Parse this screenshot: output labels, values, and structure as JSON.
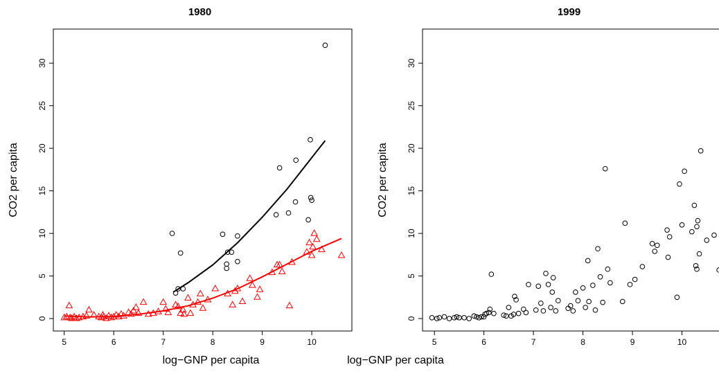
{
  "chart_data": [
    {
      "type": "scatter",
      "title": "1980",
      "x_label": "log−GNP per capita",
      "y_label": "CO2 per capita",
      "xlim": [
        4.78,
        10.81
      ],
      "ylim": [
        -1.46,
        34
      ],
      "xticks": [
        5,
        6,
        7,
        8,
        9,
        10
      ],
      "yticks": [
        0,
        5,
        10,
        15,
        20,
        25,
        30
      ],
      "series": [
        {
          "color": "#000000",
          "marker": "circle",
          "x": [
            7.18,
            7.25,
            7.3,
            7.35,
            7.4,
            8.2,
            8.28,
            8.28,
            8.3,
            8.38,
            8.5,
            8.5,
            9.28,
            9.35,
            9.53,
            9.68,
            9.67,
            9.93,
            9.97,
            9.98,
            10.0,
            10.27
          ],
          "values": [
            10.0,
            3.0,
            3.5,
            7.7,
            3.5,
            9.9,
            6.4,
            5.9,
            7.8,
            7.8,
            9.7,
            6.7,
            12.2,
            17.7,
            12.4,
            18.6,
            13.7,
            11.6,
            21.0,
            14.2,
            13.9,
            32.1
          ]
        },
        {
          "color": "#ff0000",
          "marker": "triangle",
          "x": [
            5.0,
            5.05,
            5.1,
            5.12,
            5.15,
            5.2,
            5.25,
            5.3,
            5.38,
            5.45,
            5.5,
            5.6,
            5.7,
            5.75,
            5.78,
            5.8,
            5.85,
            5.9,
            5.95,
            6.0,
            6.05,
            6.1,
            6.15,
            6.2,
            6.3,
            6.35,
            6.4,
            6.45,
            6.5,
            6.6,
            6.7,
            6.8,
            6.9,
            7.0,
            7.05,
            7.1,
            7.25,
            7.3,
            7.35,
            7.4,
            7.42,
            7.5,
            7.55,
            7.6,
            7.7,
            7.75,
            7.8,
            7.9,
            8.05,
            8.3,
            8.4,
            8.45,
            8.5,
            8.6,
            8.75,
            8.8,
            8.9,
            8.95,
            9.2,
            9.3,
            9.35,
            9.4,
            9.55,
            9.6,
            9.9,
            9.95,
            10.0,
            10.02,
            10.05,
            10.1,
            10.2,
            10.6
          ],
          "values": [
            0.1,
            0.2,
            1.5,
            0.1,
            0.0,
            0.2,
            0.0,
            0.1,
            0.2,
            0.3,
            1.0,
            0.4,
            0.2,
            0.1,
            0.4,
            0.2,
            0.0,
            0.3,
            0.1,
            0.2,
            0.4,
            0.2,
            0.5,
            0.3,
            0.7,
            0.5,
            0.9,
            1.3,
            0.6,
            1.9,
            0.5,
            0.6,
            0.8,
            1.9,
            1.1,
            0.7,
            1.6,
            1.4,
            0.6,
            1.0,
            0.5,
            2.4,
            0.6,
            1.6,
            1.9,
            2.9,
            1.2,
            2.2,
            3.5,
            2.9,
            1.6,
            3.2,
            3.5,
            2.0,
            4.7,
            3.9,
            2.5,
            3.4,
            5.4,
            6.3,
            6.3,
            5.5,
            1.5,
            6.6,
            7.8,
            8.9,
            7.4,
            8.4,
            10.0,
            9.3,
            8.1,
            7.4
          ]
        },
        {
          "color": "#000000",
          "marker": "line",
          "x": [
            7.2,
            7.5,
            8,
            8.5,
            9,
            9.5,
            10,
            10.27
          ],
          "values": [
            3.1,
            4.2,
            6.3,
            8.9,
            11.9,
            15.2,
            18.9,
            20.9
          ]
        },
        {
          "color": "#ff0000",
          "marker": "line",
          "x": [
            5,
            5.5,
            6,
            6.5,
            7,
            7.5,
            8,
            8.5,
            9,
            9.5,
            10,
            10.6
          ],
          "values": [
            0.3,
            0.2,
            0.25,
            0.5,
            0.9,
            1.5,
            2.4,
            3.5,
            4.9,
            6.4,
            7.9,
            9.4
          ]
        }
      ]
    },
    {
      "type": "scatter",
      "title": "1999",
      "x_label": "log−GNP per capita",
      "y_label": "CO2 per capita",
      "xlim": [
        4.76,
        10.79
      ],
      "ylim": [
        -1.46,
        34
      ],
      "xticks": [
        5,
        6,
        7,
        8,
        9,
        10
      ],
      "yticks": [
        0,
        5,
        10,
        15,
        20,
        25,
        30
      ],
      "series": [
        {
          "color": "#000000",
          "marker": "circle",
          "x": [
            4.95,
            5.05,
            5.1,
            5.2,
            5.3,
            5.4,
            5.45,
            5.5,
            5.6,
            5.7,
            5.8,
            5.85,
            5.9,
            5.95,
            6.0,
            6.02,
            6.05,
            6.1,
            6.12,
            6.15,
            6.2,
            6.4,
            6.45,
            6.5,
            6.55,
            6.6,
            6.62,
            6.65,
            6.7,
            6.8,
            6.85,
            6.9,
            7.05,
            7.1,
            7.15,
            7.2,
            7.25,
            7.3,
            7.35,
            7.38,
            7.4,
            7.45,
            7.5,
            7.7,
            7.75,
            7.8,
            7.85,
            7.9,
            8.0,
            8.05,
            8.1,
            8.12,
            8.2,
            8.25,
            8.3,
            8.35,
            8.4,
            8.45,
            8.5,
            8.55,
            8.8,
            8.85,
            8.95,
            9.05,
            9.2,
            9.4,
            9.45,
            9.5,
            9.7,
            9.72,
            9.75,
            9.9,
            9.95,
            10.0,
            10.05,
            10.2,
            10.25,
            10.28,
            10.3,
            10.3,
            10.32,
            10.35,
            10.38,
            10.5,
            10.65,
            10.75
          ],
          "values": [
            0.1,
            0.0,
            0.1,
            0.2,
            0.0,
            0.1,
            0.2,
            0.1,
            0.1,
            0.0,
            0.3,
            0.2,
            0.1,
            0.2,
            0.2,
            0.5,
            0.6,
            0.7,
            1.1,
            5.2,
            0.6,
            0.4,
            0.3,
            1.3,
            0.3,
            0.5,
            2.6,
            2.2,
            0.6,
            1.1,
            0.7,
            4.0,
            1.0,
            3.8,
            1.8,
            0.9,
            5.3,
            4.0,
            1.3,
            3.1,
            4.8,
            0.9,
            2.1,
            1.2,
            1.5,
            0.9,
            3.1,
            2.1,
            3.6,
            1.3,
            6.8,
            2.0,
            3.9,
            1.0,
            8.2,
            4.9,
            1.9,
            17.6,
            5.8,
            4.2,
            2.0,
            11.2,
            4.0,
            4.6,
            6.1,
            8.8,
            7.9,
            8.6,
            10.4,
            7.2,
            9.6,
            2.5,
            15.8,
            11.0,
            17.3,
            10.2,
            13.3,
            6.2,
            5.8,
            10.8,
            11.5,
            7.6,
            19.7,
            9.2,
            9.8,
            5.7
          ]
        }
      ]
    }
  ]
}
